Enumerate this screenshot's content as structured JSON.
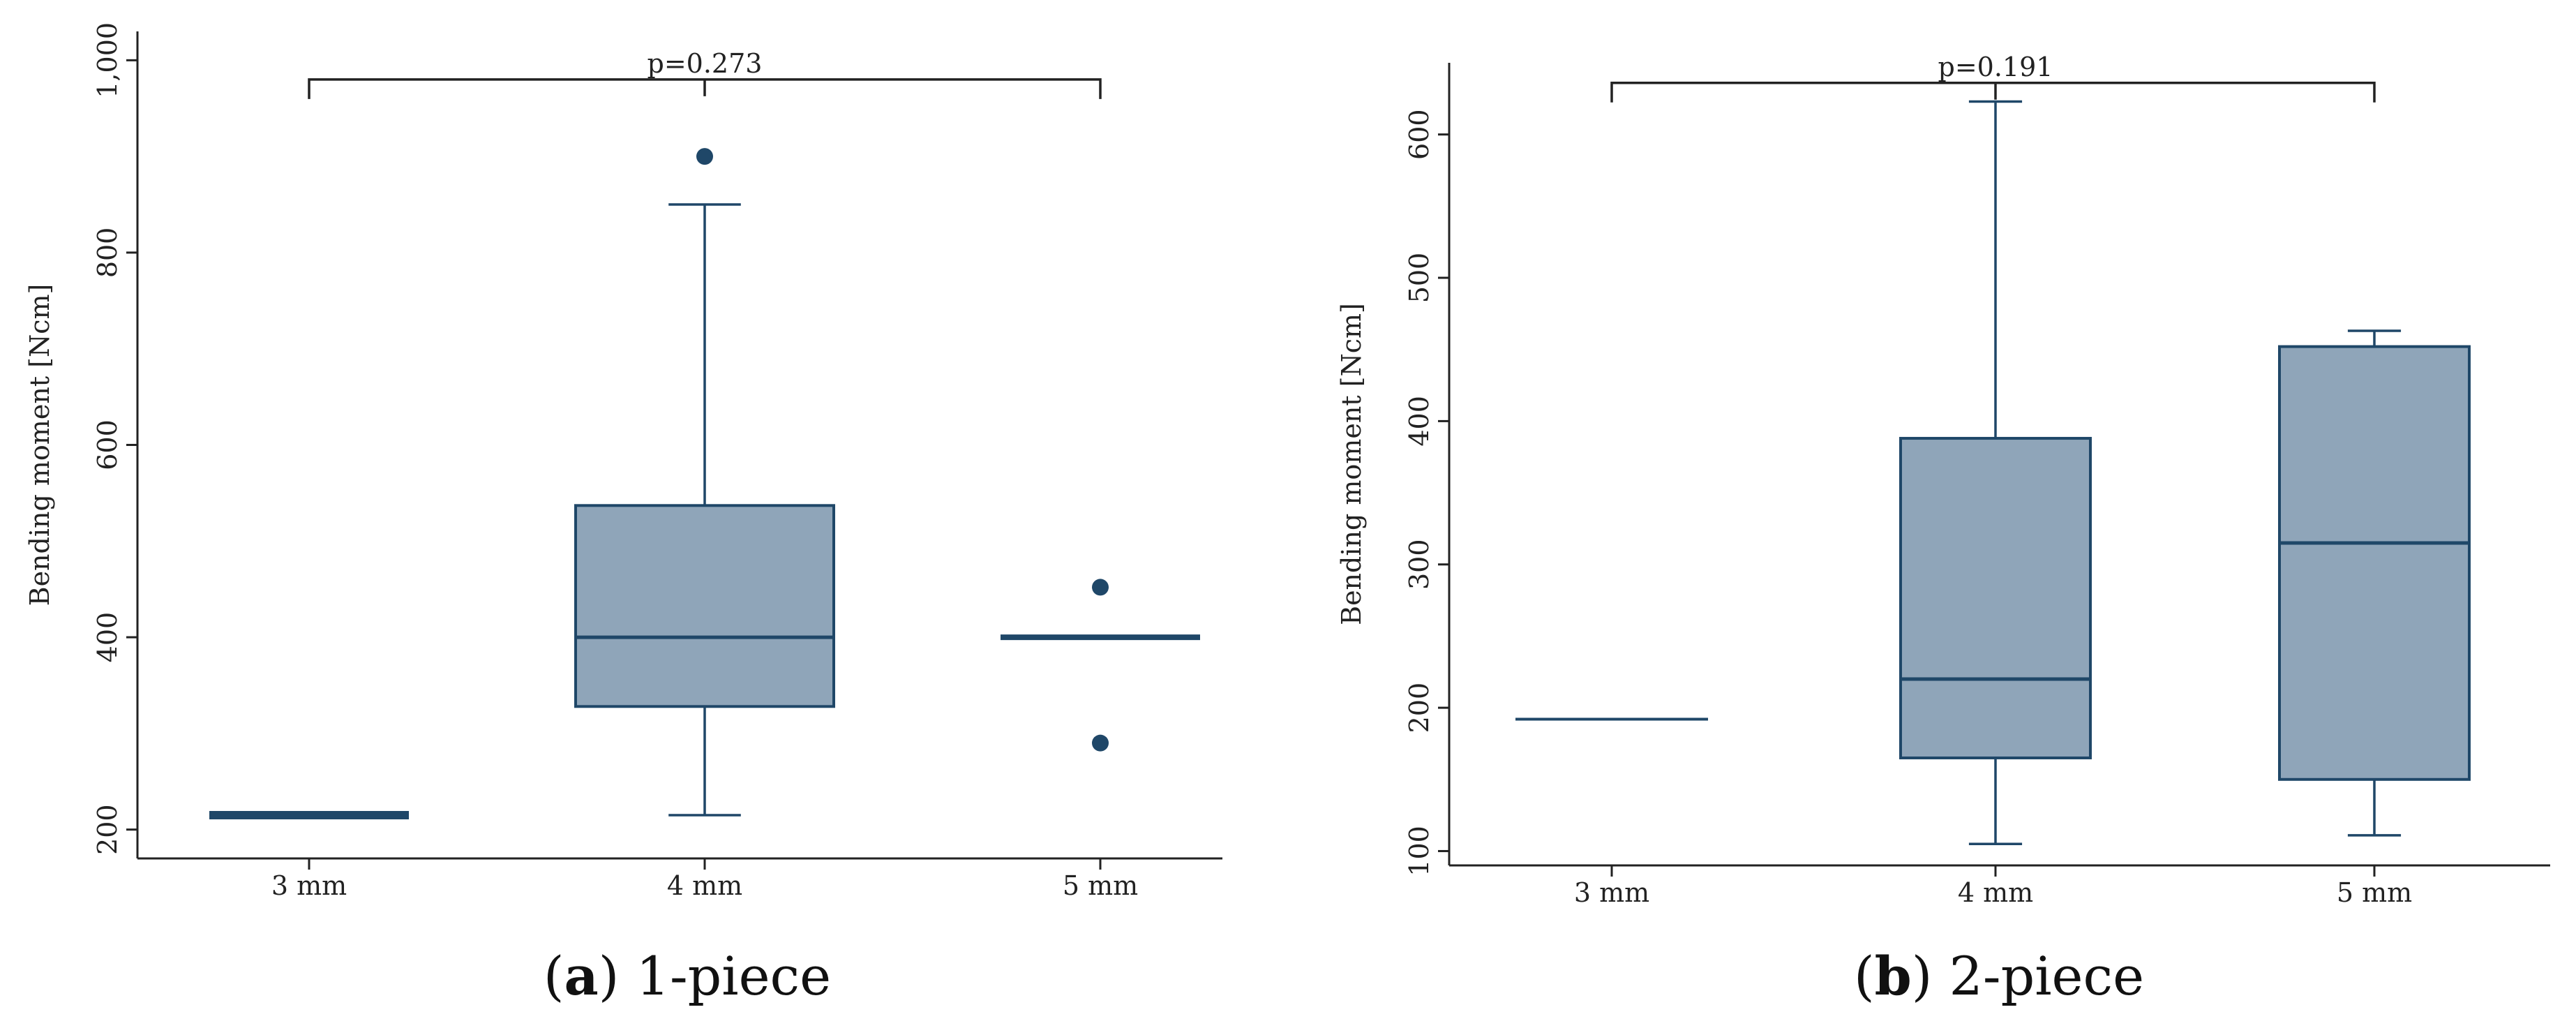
{
  "colors": {
    "box_fill": "#8fa5b9",
    "box_stroke": "#1f4768",
    "axis": "#222222"
  },
  "chart_data": [
    {
      "type": "box",
      "caption_letter": "a",
      "caption_text": "1-piece",
      "ylabel": "Bending moment [Ncm]",
      "ylim": [
        170,
        1030
      ],
      "yticks": [
        200,
        400,
        600,
        800,
        1000
      ],
      "ytick_labels": [
        "200",
        "400",
        "600",
        "800",
        "1,000"
      ],
      "categories": [
        "3 mm",
        "4 mm",
        "5 mm"
      ],
      "boxes": [
        {
          "min": 215,
          "q1": 215,
          "median": 215,
          "q3": 215,
          "max": 215,
          "outliers": []
        },
        {
          "min": 215,
          "q1": 328,
          "median": 400,
          "q3": 537,
          "max": 850,
          "outliers": [
            900
          ]
        },
        {
          "min": 400,
          "q1": 400,
          "median": 400,
          "q3": 400,
          "max": 400,
          "outliers": [
            452,
            290
          ]
        }
      ],
      "comparison": {
        "from": "3 mm",
        "to": "5 mm",
        "label": "p=0.273",
        "y": 980
      }
    },
    {
      "type": "box",
      "caption_letter": "b",
      "caption_text": "2-piece",
      "ylabel": "Bending moment [Ncm]",
      "ylim": [
        90,
        650
      ],
      "yticks": [
        100,
        200,
        300,
        400,
        500,
        600
      ],
      "ytick_labels": [
        "100",
        "200",
        "300",
        "400",
        "500",
        "600"
      ],
      "categories": [
        "3 mm",
        "4 mm",
        "5 mm"
      ],
      "boxes": [
        {
          "min": 192,
          "q1": 192,
          "median": 192,
          "q3": 192,
          "max": 192,
          "outliers": []
        },
        {
          "min": 105,
          "q1": 165,
          "median": 220,
          "q3": 388,
          "max": 623,
          "outliers": []
        },
        {
          "min": 111,
          "q1": 150,
          "median": 315,
          "q3": 452,
          "max": 463,
          "outliers": []
        }
      ],
      "comparison": {
        "from": "3 mm",
        "to": "5 mm",
        "label": "p=0.191",
        "y": 636
      }
    }
  ]
}
